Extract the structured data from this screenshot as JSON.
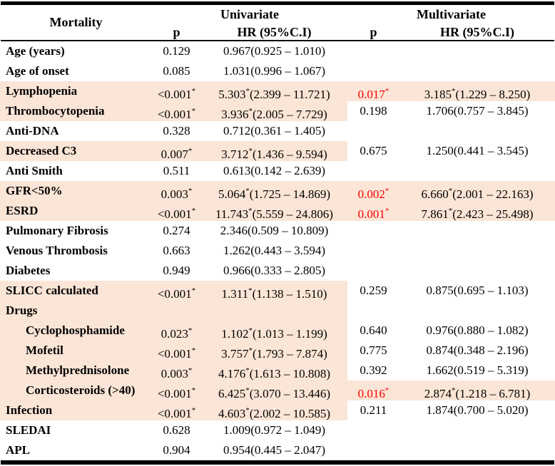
{
  "table": {
    "corner_header": "Mortality",
    "group_headers": [
      "Univariate",
      "Multivariate"
    ],
    "sub_headers": {
      "p": "p",
      "hr": "HR (95%C.I)"
    },
    "colors": {
      "highlight": "#fbe5d6",
      "significant": "#fe0000"
    },
    "rows": [
      {
        "label": "Age (years)",
        "indent": false,
        "highlight": "none",
        "uni": {
          "p": "0.129",
          "p_star": false,
          "hr": "0.967",
          "hr_star": false,
          "ci": "(0.925 – 1.010)"
        },
        "multi": null
      },
      {
        "label": "Age of onset",
        "indent": false,
        "highlight": "none",
        "uni": {
          "p": "0.085",
          "p_star": false,
          "hr": "1.031",
          "hr_star": false,
          "ci": "(0.996 – 1.067)"
        },
        "multi": null
      },
      {
        "label": "Lymphopenia",
        "indent": false,
        "highlight": "full",
        "uni": {
          "p": "<0.001",
          "p_star": true,
          "hr": "5.303",
          "hr_star": true,
          "ci": "(2.399 – 11.721)"
        },
        "multi": {
          "p": "0.017",
          "p_star": true,
          "p_red": true,
          "hr": "3.185",
          "hr_star": true,
          "ci": "(1.229 – 8.250)"
        }
      },
      {
        "label": "Thrombocytopenia",
        "indent": false,
        "highlight": "partial",
        "uni": {
          "p": "<0.001",
          "p_star": true,
          "hr": "3.936",
          "hr_star": true,
          "ci": "(2.005 – 7.729)"
        },
        "multi": {
          "p": "0.198",
          "p_star": false,
          "p_red": false,
          "hr": "1.706",
          "hr_star": false,
          "ci": "(0.757 – 3.845)"
        }
      },
      {
        "label": "Anti-DNA",
        "indent": false,
        "highlight": "none",
        "uni": {
          "p": "0.328",
          "p_star": false,
          "hr": "0.712",
          "hr_star": false,
          "ci": "(0.361 – 1.405)"
        },
        "multi": null
      },
      {
        "label": "Decreased C3",
        "indent": false,
        "highlight": "partial",
        "uni": {
          "p": "0.007",
          "p_star": true,
          "hr": "3.712",
          "hr_star": true,
          "ci": "(1.436 – 9.594)"
        },
        "multi": {
          "p": "0.675",
          "p_star": false,
          "p_red": false,
          "hr": "1.250",
          "hr_star": false,
          "ci": "(0.441 – 3.545)"
        }
      },
      {
        "label": "Anti Smith",
        "indent": false,
        "highlight": "none",
        "uni": {
          "p": "0.511",
          "p_star": false,
          "hr": "0.613",
          "hr_star": false,
          "ci": "(0.142 – 2.639)"
        },
        "multi": null
      },
      {
        "label": "GFR<50%",
        "indent": false,
        "highlight": "full",
        "uni": {
          "p": "0.003",
          "p_star": true,
          "hr": "5.064",
          "hr_star": true,
          "ci": "(1.725 – 14.869)"
        },
        "multi": {
          "p": "0.002",
          "p_star": true,
          "p_red": true,
          "hr": "6.660",
          "hr_star": true,
          "ci": "(2.001 – 22.163)"
        }
      },
      {
        "label": "ESRD",
        "indent": false,
        "highlight": "full",
        "uni": {
          "p": "<0.001",
          "p_star": true,
          "hr": "11.743",
          "hr_star": true,
          "ci": "(5.559 – 24.806)"
        },
        "multi": {
          "p": "0.001",
          "p_star": true,
          "p_red": true,
          "hr": "7.861",
          "hr_star": true,
          "ci": "(2.423 – 25.498)"
        }
      },
      {
        "label": "Pulmonary Fibrosis",
        "indent": false,
        "highlight": "none",
        "uni": {
          "p": "0.274",
          "p_star": false,
          "hr": "2.346",
          "hr_star": false,
          "ci": "(0.509 – 10.809)"
        },
        "multi": null
      },
      {
        "label": "Venous Thrombosis",
        "indent": false,
        "highlight": "none",
        "uni": {
          "p": "0.663",
          "p_star": false,
          "hr": "1.262",
          "hr_star": false,
          "ci": "(0.443 – 3.594)"
        },
        "multi": null
      },
      {
        "label": "Diabetes",
        "indent": false,
        "highlight": "none",
        "uni": {
          "p": "0.949",
          "p_star": false,
          "hr": "0.966",
          "hr_star": false,
          "ci": "(0.333 – 2.805)"
        },
        "multi": null
      },
      {
        "label": "SLICC calculated",
        "indent": false,
        "highlight": "partial",
        "uni": {
          "p": "<0.001",
          "p_star": true,
          "hr": "1.311",
          "hr_star": true,
          "ci": "(1.138 – 1.510)"
        },
        "multi": {
          "p": "0.259",
          "p_star": false,
          "p_red": false,
          "hr": "0.875",
          "hr_star": false,
          "ci": "(0.695 – 1.103)"
        }
      },
      {
        "label": "Drugs",
        "indent": false,
        "highlight": "partial",
        "uni": null,
        "multi": null
      },
      {
        "label": "Cyclophosphamide",
        "indent": true,
        "highlight": "partial",
        "uni": {
          "p": "0.023",
          "p_star": true,
          "hr": "1.102",
          "hr_star": true,
          "ci": "(1.013 – 1.199)"
        },
        "multi": {
          "p": "0.640",
          "p_star": false,
          "p_red": false,
          "hr": "0.976",
          "hr_star": false,
          "ci": "(0.880 – 1.082)"
        }
      },
      {
        "label": "Mofetil",
        "indent": true,
        "highlight": "partial",
        "uni": {
          "p": "<0.001",
          "p_star": true,
          "hr": "3.757",
          "hr_star": true,
          "ci": "(1.793 – 7.874)"
        },
        "multi": {
          "p": "0.775",
          "p_star": false,
          "p_red": false,
          "hr": "0.874",
          "hr_star": false,
          "ci": "(0.348 – 2.196)"
        }
      },
      {
        "label": "Methylprednisolone",
        "indent": true,
        "highlight": "partial",
        "uni": {
          "p": "0.003",
          "p_star": true,
          "hr": "4.176",
          "hr_star": true,
          "ci": "(1.613 – 10.808)"
        },
        "multi": {
          "p": "0.392",
          "p_star": false,
          "p_red": false,
          "hr": "1.662",
          "hr_star": false,
          "ci": "(0.519 – 5.319)"
        }
      },
      {
        "label": "Corticosteroids (>40)",
        "indent": true,
        "highlight": "full",
        "uni": {
          "p": "<0.001",
          "p_star": true,
          "hr": "6.425",
          "hr_star": true,
          "ci": "(3.070 – 13.446)"
        },
        "multi": {
          "p": "0.016",
          "p_star": true,
          "p_red": true,
          "hr": "2.874",
          "hr_star": true,
          "ci": "(1.218 – 6.781)"
        }
      },
      {
        "label": "Infection",
        "indent": false,
        "highlight": "partial",
        "uni": {
          "p": "<0.001",
          "p_star": true,
          "hr": "4.603",
          "hr_star": true,
          "ci": "(2.002 – 10.585)"
        },
        "multi": {
          "p": "0.211",
          "p_star": false,
          "p_red": false,
          "hr": "1.874",
          "hr_star": false,
          "ci": "(0.700 – 5.020)"
        }
      },
      {
        "label": "SLEDAI",
        "indent": false,
        "highlight": "none",
        "uni": {
          "p": "0.628",
          "p_star": false,
          "hr": "1.009",
          "hr_star": false,
          "ci": "(0.972 – 1.049)"
        },
        "multi": null
      },
      {
        "label": "APL",
        "indent": false,
        "highlight": "none",
        "uni": {
          "p": "0.904",
          "p_star": false,
          "hr": "0.954",
          "hr_star": false,
          "ci": "(0.445 – 2.047)"
        },
        "multi": null
      }
    ]
  }
}
